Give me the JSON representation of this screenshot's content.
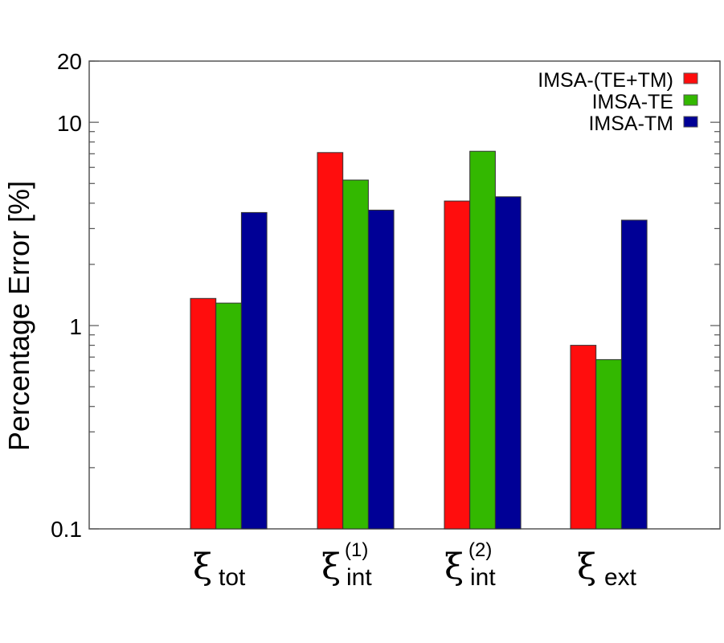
{
  "chart_data": {
    "type": "bar",
    "title": "",
    "xlabel": "",
    "ylabel": "Percentage Error [%]",
    "yscale": "log",
    "ylim": [
      0.1,
      20
    ],
    "yticks": [
      0.1,
      1,
      10,
      20
    ],
    "ytick_labels": [
      "0.1",
      "1",
      "10",
      "20"
    ],
    "grid": false,
    "legend_position": "upper right",
    "categories": [
      {
        "symbol": "ξ",
        "subscript": "tot",
        "superscript": ""
      },
      {
        "symbol": "ξ",
        "subscript": "int",
        "superscript": "(1)"
      },
      {
        "symbol": "ξ",
        "subscript": "int",
        "superscript": "(2)"
      },
      {
        "symbol": "ξ",
        "subscript": "ext",
        "superscript": ""
      }
    ],
    "category_labels": [
      "ξ_tot",
      "ξ_int^(1)",
      "ξ_int^(2)",
      "ξ_ext"
    ],
    "series": [
      {
        "name": "IMSA-(TE+TM)",
        "color": "#ff0d0d",
        "values": [
          1.36,
          7.1,
          4.1,
          0.8
        ]
      },
      {
        "name": "IMSA-TE",
        "color": "#33b800",
        "values": [
          1.29,
          5.2,
          7.2,
          0.68
        ]
      },
      {
        "name": "IMSA-TM",
        "color": "#000096",
        "values": [
          3.6,
          3.7,
          4.3,
          3.3
        ]
      }
    ]
  },
  "axis": {
    "y_title": "Percentage Error [%]",
    "tick_20": "20",
    "tick_10": "10",
    "tick_1": "1",
    "tick_01": "0.1"
  },
  "legend": {
    "items": [
      {
        "label": "IMSA-(TE+TM)",
        "color": "#ff0d0d"
      },
      {
        "label": "IMSA-TE",
        "color": "#33b800"
      },
      {
        "label": "IMSA-TM",
        "color": "#000096"
      }
    ]
  },
  "xcats": [
    {
      "main": "ξ",
      "sub": "tot",
      "sup": ""
    },
    {
      "main": "ξ",
      "sub": "int",
      "sup": "(1)"
    },
    {
      "main": "ξ",
      "sub": "int",
      "sup": "(2)"
    },
    {
      "main": "ξ",
      "sub": "ext",
      "sup": ""
    }
  ]
}
